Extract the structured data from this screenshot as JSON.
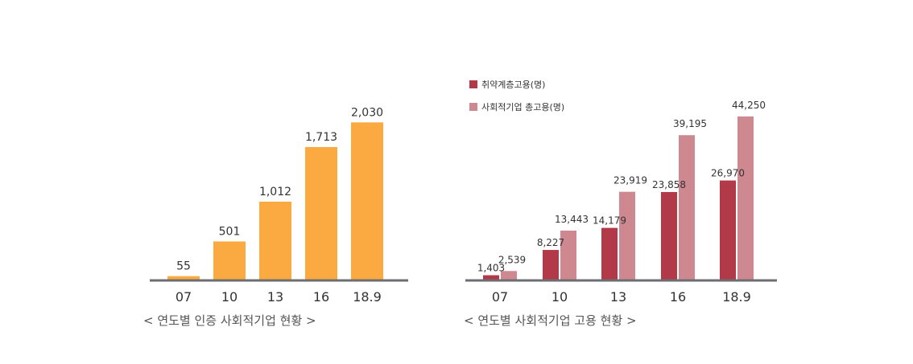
{
  "chart_data": [
    {
      "type": "bar",
      "title": "",
      "caption": "< 연도별 인증 사회적기업 현황 >",
      "categories": [
        "07",
        "10",
        "13",
        "16",
        "18.9"
      ],
      "series": [
        {
          "values": [
            55,
            501,
            1012,
            1713,
            2030
          ],
          "labels": [
            "55",
            "501",
            "1,012",
            "1,713",
            "2,030"
          ],
          "color": "#FBAA42"
        }
      ],
      "ylim": [
        0,
        2250
      ],
      "grid": false,
      "axis_color": "#6D6E71"
    },
    {
      "type": "bar",
      "title": "",
      "caption": "< 연도별 사회적기업 고용 현황 >",
      "categories": [
        "07",
        "10",
        "13",
        "16",
        "18.9"
      ],
      "series": [
        {
          "name": "취약계층고용(명)",
          "values": [
            1403,
            8227,
            14179,
            23858,
            26970
          ],
          "labels": [
            "1,403",
            "8,227",
            "14,179",
            "23,858",
            "26,970"
          ],
          "color": "#B23A48"
        },
        {
          "name": "사회적기업 총고용(명)",
          "values": [
            2539,
            13443,
            23919,
            39195,
            44250
          ],
          "labels": [
            "2,539",
            "13,443",
            "23,919",
            "39,195",
            "44,250"
          ],
          "color": "#CE8890"
        }
      ],
      "ylim": [
        0,
        49000
      ],
      "grid": false,
      "legend": "top-left",
      "axis_color": "#6D6E71"
    }
  ]
}
